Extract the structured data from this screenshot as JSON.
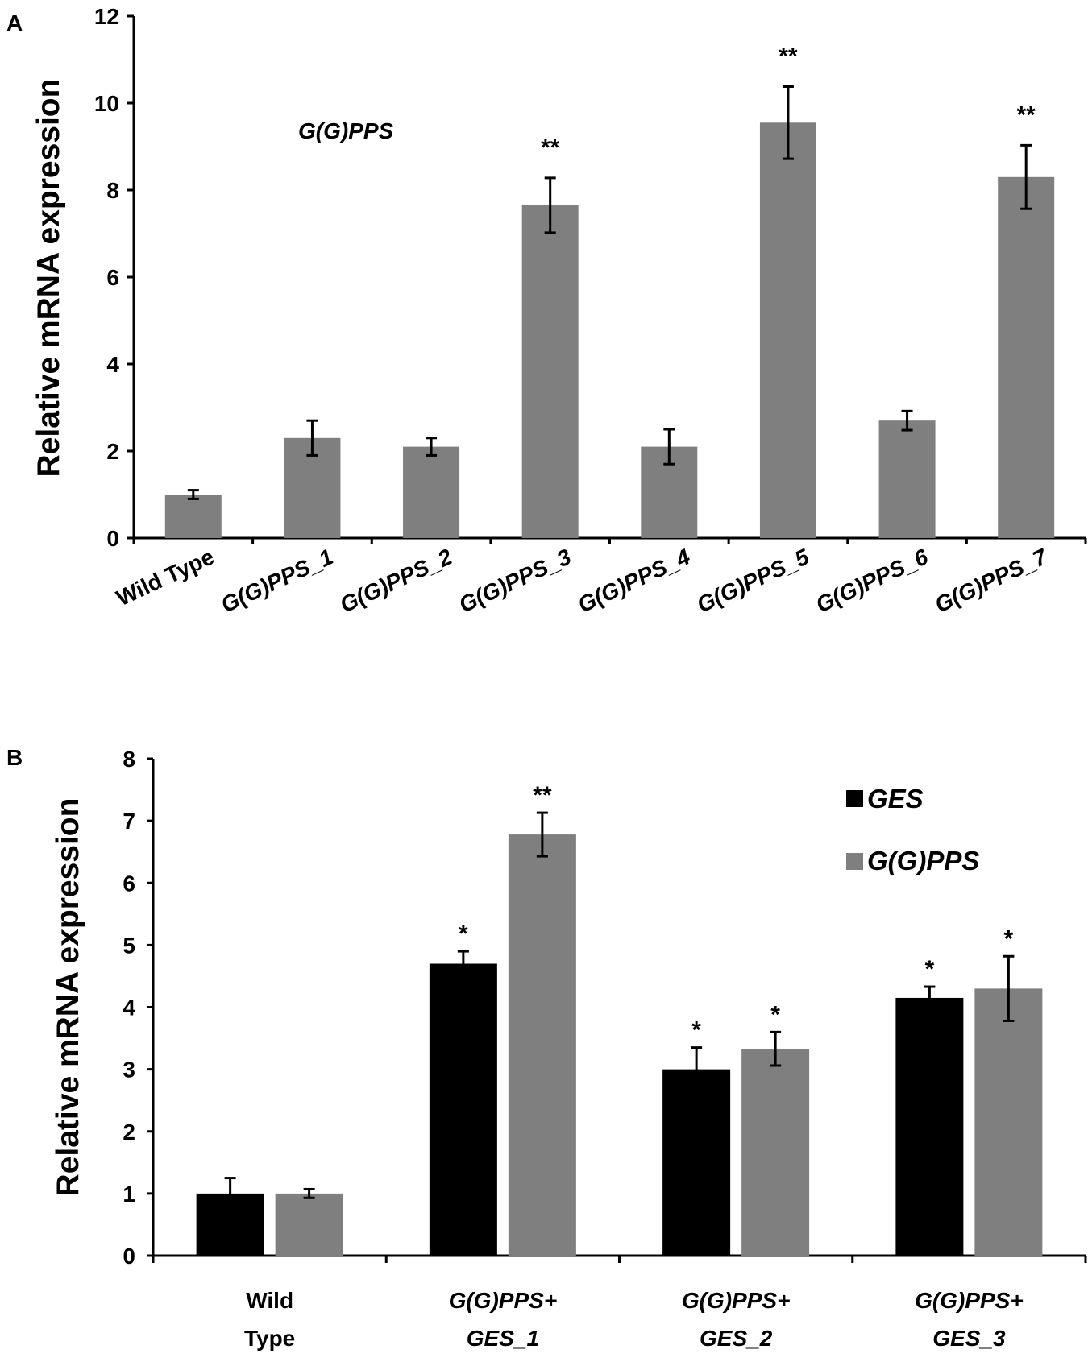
{
  "chart_data": [
    {
      "panel": "A",
      "type": "bar",
      "annotation": "G(G)PPS",
      "ylabel": "Relative mRNA expression",
      "ylim": [
        0,
        12
      ],
      "yticks": [
        "0",
        "2",
        "4",
        "6",
        "8",
        "10",
        "12"
      ],
      "categories": [
        {
          "label": "Wild Type",
          "italic": false
        },
        {
          "label": "G(G)PPS_1",
          "italic": true
        },
        {
          "label": "G(G)PPS_2",
          "italic": true
        },
        {
          "label": "G(G)PPS_3",
          "italic": true
        },
        {
          "label": "G(G)PPS_4",
          "italic": true
        },
        {
          "label": "G(G)PPS_5",
          "italic": true
        },
        {
          "label": "G(G)PPS_6",
          "italic": true
        },
        {
          "label": "G(G)PPS_7",
          "italic": true
        }
      ],
      "values": [
        1.0,
        2.3,
        2.1,
        7.65,
        2.1,
        9.55,
        2.7,
        8.3
      ],
      "errors": [
        0.1,
        0.4,
        0.2,
        0.63,
        0.4,
        0.83,
        0.22,
        0.73
      ],
      "significance": [
        "",
        "",
        "",
        "**",
        "",
        "**",
        "",
        "**"
      ],
      "color": "#7f7f7f"
    },
    {
      "panel": "B",
      "type": "bar",
      "ylabel": "Relative mRNA expression",
      "ylim": [
        0,
        8
      ],
      "yticks": [
        "0",
        "1",
        "2",
        "3",
        "4",
        "5",
        "6",
        "7",
        "8"
      ],
      "categories": [
        {
          "line1": "Wild",
          "line2": "Type",
          "italic": false
        },
        {
          "line1": "G(G)PPS+",
          "line2": "GES_1",
          "italic": true
        },
        {
          "line1": "G(G)PPS+",
          "line2": "GES_2",
          "italic": true
        },
        {
          "line1": "G(G)PPS+",
          "line2": "GES_3",
          "italic": true
        }
      ],
      "series": [
        {
          "name": "GES",
          "color": "#000000",
          "values": [
            1.0,
            4.7,
            3.0,
            4.15
          ],
          "errors": [
            0.25,
            0.2,
            0.35,
            0.18
          ],
          "significance": [
            "",
            "*",
            "*",
            "*"
          ]
        },
        {
          "name": "G(G)PPS",
          "color": "#7f7f7f",
          "values": [
            1.0,
            6.78,
            3.33,
            4.3
          ],
          "errors": [
            0.07,
            0.35,
            0.27,
            0.52
          ],
          "significance": [
            "",
            "**",
            "*",
            "*"
          ]
        }
      ],
      "legend_position": "top-right"
    }
  ]
}
